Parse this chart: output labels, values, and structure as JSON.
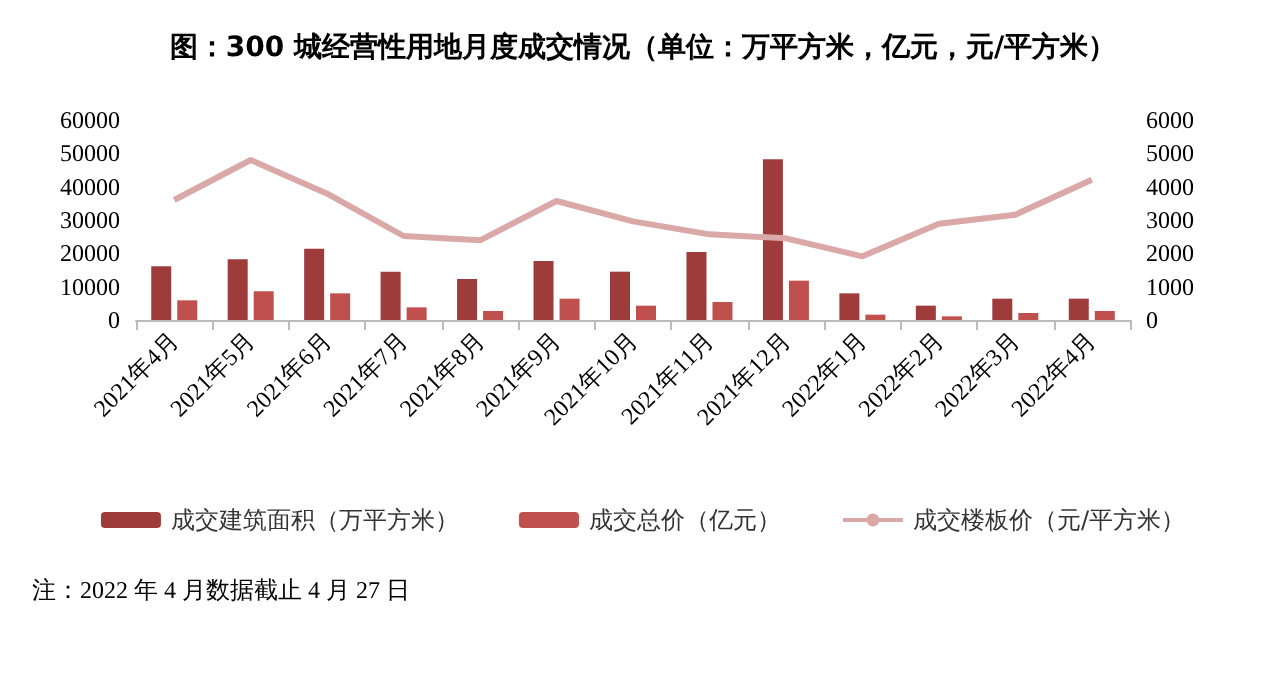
{
  "chart_data": {
    "type": "bar",
    "title": "图：300 城经营性用地月度成交情况（单位：万平方米，亿元，元/平方米）",
    "categories": [
      "2021年4月",
      "2021年5月",
      "2021年6月",
      "2021年7月",
      "2021年8月",
      "2021年9月",
      "2021年10月",
      "2021年11月",
      "2021年12月",
      "2022年1月",
      "2022年2月",
      "2022年3月",
      "2022年4月"
    ],
    "series": [
      {
        "name": "成交建筑面积（万平方米）",
        "color": "#9e3c3c",
        "values": [
          16100,
          18200,
          21400,
          14500,
          12300,
          17700,
          14500,
          20400,
          48200,
          8000,
          4300,
          6400,
          6400
        ]
      },
      {
        "name": "成交总价（亿元）",
        "color": "#c0504d",
        "values": [
          5900,
          8600,
          8000,
          3800,
          2700,
          6400,
          4300,
          5400,
          11800,
          1600,
          1100,
          2100,
          2700
        ]
      },
      {
        "name": "成交楼板价（元/平方米）",
        "type": "line",
        "axis": "y2",
        "color": "#d9a8a7",
        "values": [
          3600,
          4800,
          3790,
          2520,
          2390,
          3570,
          2960,
          2570,
          2450,
          1910,
          2890,
          3160,
          4210
        ]
      }
    ],
    "ylim": [
      0,
      60000
    ],
    "yticks": [
      0,
      10000,
      20000,
      30000,
      40000,
      50000,
      60000
    ],
    "y2lim": [
      0,
      6000
    ],
    "y2ticks": [
      0,
      1000,
      2000,
      3000,
      4000,
      5000,
      6000
    ],
    "grid": false,
    "legend": "bottom",
    "marker": "none",
    "annotations": [
      "注：2022 年 4 月数据截止 4 月 27 日"
    ]
  }
}
